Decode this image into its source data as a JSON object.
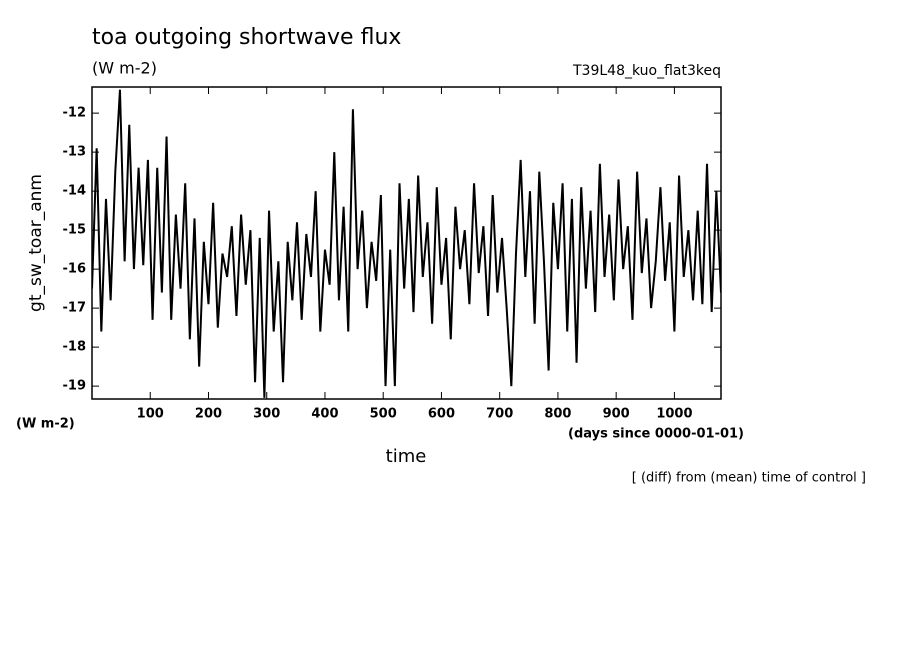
{
  "chart_data": {
    "type": "line",
    "title": "toa outgoing shortwave flux",
    "subtitle": "(W m-2)",
    "run_label": "T39L48_kuo_flat3keq",
    "y_label": "gt_sw_toar_anm",
    "y_unit": "(W m-2)",
    "x_label": "time",
    "x_unit": "(days since 0000-01-01)",
    "note": "[ (diff) from (mean) time of control ]",
    "x": [
      0,
      8,
      16,
      24,
      32,
      40,
      48,
      56,
      64,
      72,
      80,
      88,
      96,
      104,
      112,
      120,
      128,
      136,
      144,
      152,
      160,
      168,
      176,
      184,
      192,
      200,
      208,
      216,
      224,
      232,
      240,
      248,
      256,
      264,
      272,
      280,
      288,
      296,
      304,
      312,
      320,
      328,
      336,
      344,
      352,
      360,
      368,
      376,
      384,
      392,
      400,
      408,
      416,
      424,
      432,
      440,
      448,
      456,
      464,
      472,
      480,
      488,
      496,
      504,
      512,
      520,
      528,
      536,
      544,
      552,
      560,
      568,
      576,
      584,
      592,
      600,
      608,
      616,
      624,
      632,
      640,
      648,
      656,
      664,
      672,
      680,
      688,
      696,
      704,
      712,
      720,
      728,
      736,
      744,
      752,
      760,
      768,
      776,
      784,
      792,
      800,
      808,
      816,
      824,
      832,
      840,
      848,
      856,
      864,
      872,
      880,
      888,
      896,
      904,
      912,
      920,
      928,
      936,
      944,
      952,
      960,
      968,
      976,
      984,
      992,
      1000,
      1008,
      1016,
      1024,
      1032,
      1040,
      1048,
      1056,
      1064,
      1072,
      1080
    ],
    "series": [
      {
        "name": "gt_sw_toar_anm",
        "color": "#000000",
        "values": [
          -16.5,
          -12.9,
          -17.6,
          -14.2,
          -16.8,
          -13.5,
          -11.4,
          -15.8,
          -12.3,
          -16.0,
          -13.4,
          -15.9,
          -13.2,
          -17.3,
          -13.4,
          -16.6,
          -12.6,
          -17.3,
          -14.6,
          -16.5,
          -13.8,
          -17.8,
          -14.7,
          -18.5,
          -15.3,
          -16.9,
          -14.3,
          -17.5,
          -15.6,
          -16.2,
          -14.9,
          -17.2,
          -14.6,
          -16.4,
          -15.0,
          -18.9,
          -15.2,
          -19.3,
          -14.5,
          -17.6,
          -15.8,
          -18.9,
          -15.3,
          -16.8,
          -14.8,
          -17.3,
          -15.1,
          -16.2,
          -14.0,
          -17.6,
          -15.5,
          -16.4,
          -13.0,
          -16.8,
          -14.4,
          -17.6,
          -11.9,
          -16.0,
          -14.5,
          -17.0,
          -15.3,
          -16.3,
          -14.1,
          -19.0,
          -15.5,
          -19.0,
          -13.8,
          -16.5,
          -14.2,
          -17.1,
          -13.6,
          -16.2,
          -14.8,
          -17.4,
          -13.9,
          -16.4,
          -15.2,
          -17.8,
          -14.4,
          -16.0,
          -15.0,
          -16.9,
          -13.8,
          -16.1,
          -14.9,
          -17.2,
          -14.1,
          -16.6,
          -15.2,
          -17.0,
          -19.0,
          -15.6,
          -13.2,
          -16.2,
          -14.0,
          -17.4,
          -13.5,
          -15.8,
          -18.6,
          -14.3,
          -16.0,
          -13.8,
          -17.6,
          -14.2,
          -18.4,
          -13.9,
          -16.5,
          -14.5,
          -17.1,
          -13.3,
          -16.2,
          -14.6,
          -16.8,
          -13.7,
          -16.0,
          -14.9,
          -17.3,
          -13.5,
          -16.1,
          -14.7,
          -17.0,
          -15.8,
          -13.9,
          -16.3,
          -14.8,
          -17.6,
          -13.6,
          -16.2,
          -15.0,
          -16.8,
          -14.5,
          -16.9,
          -13.3,
          -17.1,
          -14.0,
          -16.6
        ]
      }
    ],
    "xlim": [
      0,
      1080
    ],
    "ylim": [
      -19.33,
      -11.33
    ],
    "xticks": [
      100,
      200,
      300,
      400,
      500,
      600,
      700,
      800,
      900,
      1000
    ],
    "yticks": [
      -19,
      -18,
      -17,
      -16,
      -15,
      -14,
      -13,
      -12
    ]
  }
}
